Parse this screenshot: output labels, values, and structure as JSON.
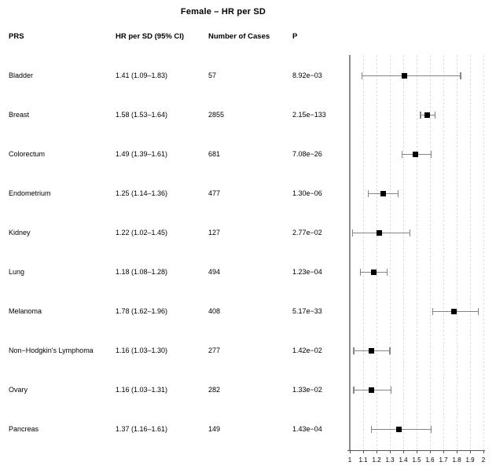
{
  "title": "Female – HR per SD",
  "table": {
    "headers": {
      "prs": "PRS",
      "hr_ci": "HR per SD (95% CI)",
      "cases": "Number of Cases",
      "p": "P"
    }
  },
  "chart_data": {
    "type": "scatter",
    "variant": "forest-plot",
    "title": "Female – HR per SD",
    "xlabel": "",
    "ylabel": "",
    "xlim": [
      1,
      2
    ],
    "xtick_labels": [
      "1",
      "1.1",
      "1.2",
      "1.3",
      "1.4",
      "1.5",
      "1.6",
      "1.7",
      "1.8",
      "1.9",
      "2"
    ],
    "xtick_values": [
      1,
      1.1,
      1.2,
      1.3,
      1.4,
      1.5,
      1.6,
      1.7,
      1.8,
      1.9,
      2
    ],
    "gridline_values": [
      1.1,
      1.2,
      1.3,
      1.4,
      1.5,
      1.6,
      1.7,
      1.8,
      1.9,
      2
    ],
    "grid": true,
    "legend": false,
    "rows": [
      {
        "label": "Bladder",
        "hr": 1.41,
        "ci_low": 1.09,
        "ci_high": 1.83,
        "hr_ci_text": "1.41 (1.09–1.83)",
        "cases": "57",
        "p": "8.92e−03"
      },
      {
        "label": "Breast",
        "hr": 1.58,
        "ci_low": 1.53,
        "ci_high": 1.64,
        "hr_ci_text": "1.58 (1.53–1.64)",
        "cases": "2855",
        "p": "2.15e−133"
      },
      {
        "label": "Colorectum",
        "hr": 1.49,
        "ci_low": 1.39,
        "ci_high": 1.61,
        "hr_ci_text": "1.49 (1.39–1.61)",
        "cases": "681",
        "p": "7.08e−26"
      },
      {
        "label": "Endometrium",
        "hr": 1.25,
        "ci_low": 1.14,
        "ci_high": 1.36,
        "hr_ci_text": "1.25 (1.14–1.36)",
        "cases": "477",
        "p": "1.30e−06"
      },
      {
        "label": "Kidney",
        "hr": 1.22,
        "ci_low": 1.02,
        "ci_high": 1.45,
        "hr_ci_text": "1.22 (1.02–1.45)",
        "cases": "127",
        "p": "2.77e−02"
      },
      {
        "label": "Lung",
        "hr": 1.18,
        "ci_low": 1.08,
        "ci_high": 1.28,
        "hr_ci_text": "1.18 (1.08–1.28)",
        "cases": "494",
        "p": "1.23e−04"
      },
      {
        "label": "Melanoma",
        "hr": 1.78,
        "ci_low": 1.62,
        "ci_high": 1.96,
        "hr_ci_text": "1.78 (1.62–1.96)",
        "cases": "408",
        "p": "5.17e−33"
      },
      {
        "label": "Non−Hodgkin's Lymphoma",
        "hr": 1.16,
        "ci_low": 1.03,
        "ci_high": 1.3,
        "hr_ci_text": "1.16 (1.03–1.30)",
        "cases": "277",
        "p": "1.42e−02"
      },
      {
        "label": "Ovary",
        "hr": 1.16,
        "ci_low": 1.03,
        "ci_high": 1.31,
        "hr_ci_text": "1.16 (1.03–1.31)",
        "cases": "282",
        "p": "1.33e−02"
      },
      {
        "label": "Pancreas",
        "hr": 1.37,
        "ci_low": 1.16,
        "ci_high": 1.61,
        "hr_ci_text": "1.37 (1.16–1.61)",
        "cases": "149",
        "p": "1.43e−04"
      }
    ]
  },
  "colors": {
    "background": "#ffffff",
    "text": "#000000",
    "axis": "#555555",
    "reference_line": "#8c8c8c",
    "error_bar": "#858585",
    "point_marker": "#000000",
    "gridline": "#dedede"
  }
}
